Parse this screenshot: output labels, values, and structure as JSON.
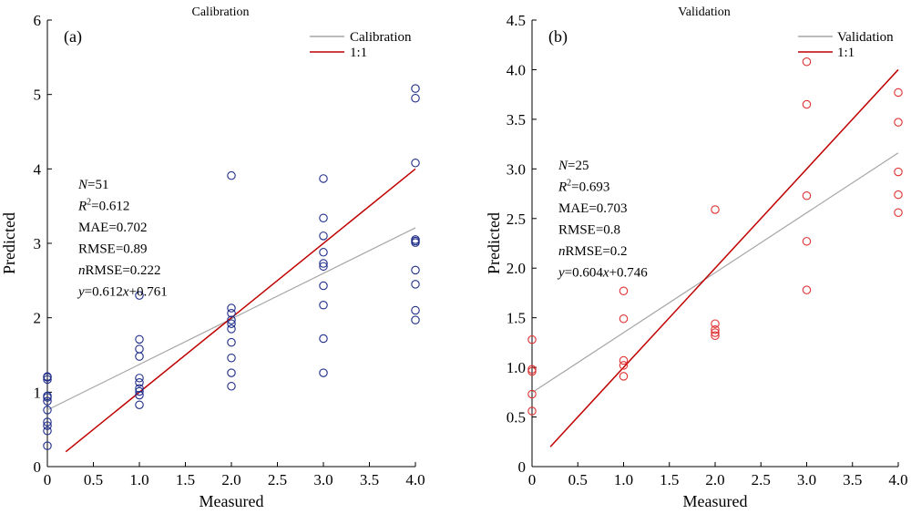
{
  "chart_data": [
    {
      "type": "scatter",
      "title": "Calibration",
      "tag": "(a)",
      "xlabel": "Measured",
      "ylabel": "Predicted",
      "xlim": [
        0,
        4.0
      ],
      "ylim": [
        0,
        6
      ],
      "xticks": [
        0,
        0.5,
        1.0,
        1.5,
        2.0,
        2.5,
        3.0,
        3.5,
        4.0
      ],
      "xtick_labels": [
        "0",
        "0.5",
        "1.0",
        "1.5",
        "2.0",
        "2.5",
        "3.0",
        "3.5",
        "4.0"
      ],
      "yticks": [
        0,
        1,
        2,
        3,
        4,
        5,
        6
      ],
      "ytick_labels": [
        "0",
        "1",
        "2",
        "3",
        "4",
        "5",
        "6"
      ],
      "marker_color": "#1f2d8a",
      "points": [
        [
          0,
          0.28
        ],
        [
          0,
          0.48
        ],
        [
          0,
          0.55
        ],
        [
          0,
          0.6
        ],
        [
          0,
          0.76
        ],
        [
          0,
          0.88
        ],
        [
          0,
          0.93
        ],
        [
          0,
          0.95
        ],
        [
          0,
          1.17
        ],
        [
          0,
          1.2
        ],
        [
          0,
          1.21
        ],
        [
          1.0,
          0.83
        ],
        [
          1.0,
          0.96
        ],
        [
          1.0,
          1.01
        ],
        [
          1.0,
          1.05
        ],
        [
          1.0,
          1.13
        ],
        [
          1.0,
          1.19
        ],
        [
          1.0,
          1.48
        ],
        [
          1.0,
          1.58
        ],
        [
          1.0,
          1.71
        ],
        [
          1.0,
          2.3
        ],
        [
          2.0,
          1.08
        ],
        [
          2.0,
          1.26
        ],
        [
          2.0,
          1.46
        ],
        [
          2.0,
          1.67
        ],
        [
          2.0,
          1.85
        ],
        [
          2.0,
          1.92
        ],
        [
          2.0,
          1.97
        ],
        [
          2.0,
          2.06
        ],
        [
          2.0,
          2.13
        ],
        [
          2.0,
          3.91
        ],
        [
          3.0,
          1.26
        ],
        [
          3.0,
          1.72
        ],
        [
          3.0,
          2.17
        ],
        [
          3.0,
          2.43
        ],
        [
          3.0,
          2.69
        ],
        [
          3.0,
          2.73
        ],
        [
          3.0,
          2.88
        ],
        [
          3.0,
          3.1
        ],
        [
          3.0,
          3.34
        ],
        [
          3.0,
          3.87
        ],
        [
          4.0,
          1.97
        ],
        [
          4.0,
          2.1
        ],
        [
          4.0,
          2.45
        ],
        [
          4.0,
          2.64
        ],
        [
          4.0,
          3.01
        ],
        [
          4.0,
          3.03
        ],
        [
          4.0,
          3.05
        ],
        [
          4.0,
          4.08
        ],
        [
          4.0,
          4.95
        ],
        [
          4.0,
          5.08
        ]
      ],
      "fit_line": {
        "label": "Calibration",
        "color": "#a6a6a6",
        "slope": 0.612,
        "intercept": 0.761,
        "x_range": [
          0,
          4.0
        ]
      },
      "one_to_one": {
        "label": "1:1",
        "color": "#c00000",
        "x_range": [
          0.2,
          4.0
        ]
      },
      "legend_position": "top-right",
      "stats": {
        "n": "N=51",
        "r2": "R2=0.612",
        "mae": "MAE=0.702",
        "rmse": "RMSE=0.89",
        "nrmse": "nRMSE=0.222",
        "eq": "y=0.612x+0.761"
      }
    },
    {
      "type": "scatter",
      "title": "Validation",
      "tag": "(b)",
      "xlabel": "Measured",
      "ylabel": "Predicted",
      "xlim": [
        0,
        4.0
      ],
      "ylim": [
        0,
        4.5
      ],
      "xticks": [
        0,
        0.5,
        1.0,
        1.5,
        2.0,
        2.5,
        3.0,
        3.5,
        4.0
      ],
      "xtick_labels": [
        "0",
        "0.5",
        "1.0",
        "1.5",
        "2.0",
        "2.5",
        "3.0",
        "3.5",
        "4.0"
      ],
      "yticks": [
        0,
        0.5,
        1.0,
        1.5,
        2.0,
        2.5,
        3.0,
        3.5,
        4.0,
        4.5
      ],
      "ytick_labels": [
        "0",
        "0.5",
        "1.0",
        "1.5",
        "2.0",
        "2.5",
        "3.0",
        "3.5",
        "4.0",
        "4.5"
      ],
      "marker_color": "#e03030",
      "points": [
        [
          0,
          0.56
        ],
        [
          0,
          0.73
        ],
        [
          0,
          0.96
        ],
        [
          0,
          0.98
        ],
        [
          0,
          1.28
        ],
        [
          1.0,
          0.91
        ],
        [
          1.0,
          1.02
        ],
        [
          1.0,
          1.07
        ],
        [
          1.0,
          1.49
        ],
        [
          1.0,
          1.77
        ],
        [
          2.0,
          1.32
        ],
        [
          2.0,
          1.35
        ],
        [
          2.0,
          1.38
        ],
        [
          2.0,
          1.44
        ],
        [
          2.0,
          2.59
        ],
        [
          3.0,
          1.78
        ],
        [
          3.0,
          2.27
        ],
        [
          3.0,
          2.73
        ],
        [
          3.0,
          3.65
        ],
        [
          3.0,
          4.08
        ],
        [
          4.0,
          2.56
        ],
        [
          4.0,
          2.74
        ],
        [
          4.0,
          2.97
        ],
        [
          4.0,
          3.47
        ],
        [
          4.0,
          3.77
        ]
      ],
      "fit_line": {
        "label": "Validation",
        "color": "#a6a6a6",
        "slope": 0.604,
        "intercept": 0.746,
        "x_range": [
          0,
          4.0
        ]
      },
      "one_to_one": {
        "label": "1:1",
        "color": "#c00000",
        "x_range": [
          0.2,
          4.0
        ]
      },
      "legend_position": "top-right",
      "stats": {
        "n": "N=25",
        "r2": "R2=0.693",
        "mae": "MAE=0.703",
        "rmse": "RMSE=0.8",
        "nrmse": "nRMSE=0.2",
        "eq": "y=0.604x+0.746"
      }
    }
  ]
}
